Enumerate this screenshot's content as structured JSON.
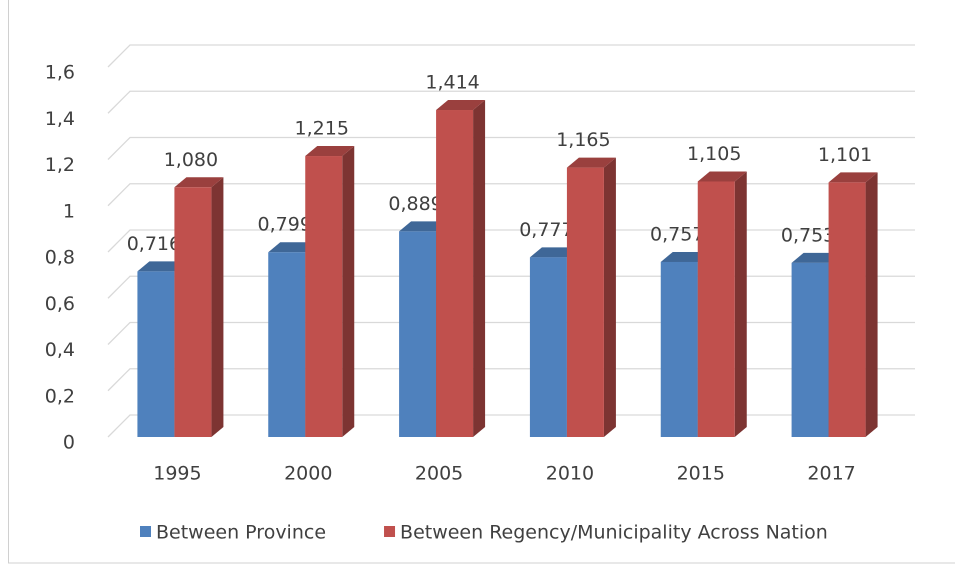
{
  "chart_data": {
    "type": "bar3d",
    "categories": [
      "1995",
      "2000",
      "2005",
      "2010",
      "2015",
      "2017"
    ],
    "series": [
      {
        "name": "Between Province",
        "color": "#4f81bd",
        "values": [
          0.716,
          0.799,
          0.889,
          0.777,
          0.757,
          0.753
        ],
        "value_labels": [
          "0,716",
          "0,799",
          "0,889",
          "0,777",
          "0,757",
          "0,753"
        ]
      },
      {
        "name": "Between Regency/Municipality Across Nation",
        "color": "#c0504d",
        "values": [
          1.08,
          1.215,
          1.414,
          1.165,
          1.105,
          1.101
        ],
        "value_labels": [
          "1,080",
          "1,215",
          "1,414",
          "1,165",
          "1,105",
          "1,101"
        ]
      }
    ],
    "ylim": [
      0,
      1.6
    ],
    "yticks": [
      0,
      {
        "value": 0.2,
        "label": "0,2"
      },
      {
        "value": 0.4,
        "label": "0,4"
      },
      {
        "value": 0.6,
        "label": "0,6"
      },
      {
        "value": 0.8,
        "label": "0,8"
      },
      1,
      {
        "value": 1.2,
        "label": "1,2"
      },
      {
        "value": 1.4,
        "label": "1,4"
      },
      {
        "value": 1.6,
        "label": "1,6"
      }
    ],
    "grid": true,
    "legend": "bottom"
  }
}
